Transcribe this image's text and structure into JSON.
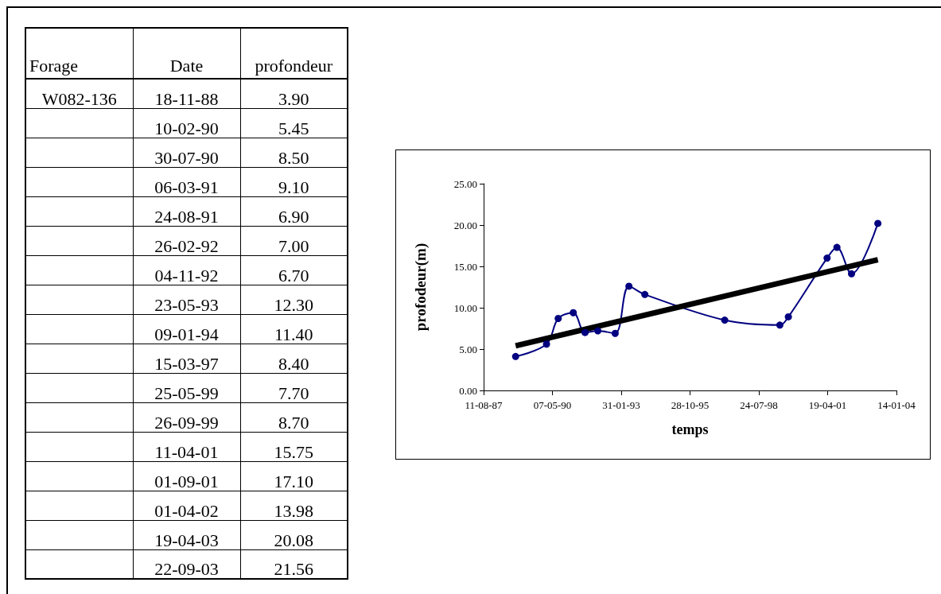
{
  "chart_data": [
    {
      "type": "other",
      "annotations": [
        "Forage",
        "Date",
        "profondeur",
        "W082-136"
      ],
      "categories": [
        "18-11-88",
        "10-02-90",
        "30-07-90",
        "06-03-91",
        "24-08-91",
        "26-02-92",
        "04-11-92",
        "23-05-93",
        "09-01-94",
        "15-03-97",
        "25-05-99",
        "26-09-99",
        "11-04-01",
        "01-09-01",
        "01-04-02",
        "19-04-03",
        "22-09-03"
      ],
      "value_labels": [
        "3.90",
        "5.45",
        "8.50",
        "9.10",
        "6.90",
        "7.00",
        "6.70",
        "12.30",
        "11.40",
        "8.40",
        "7.70",
        "8.70",
        "15.75",
        "17.10",
        "13.98",
        "20.08",
        "21.56"
      ]
    },
    {
      "type": "line",
      "xlabel": "temps",
      "ylabel": "profodeur(m)",
      "marker": "circle",
      "grid": false,
      "xlim": [
        "1987-08-11",
        "2004-01-14"
      ],
      "xticks": [
        {
          "value": "1987-08-11",
          "label": "11-08-87"
        },
        {
          "value": "1990-05-07",
          "label": "07-05-90"
        },
        {
          "value": "1993-01-31",
          "label": "31-01-93"
        },
        {
          "value": "1995-10-28",
          "label": "28-10-95"
        },
        {
          "value": "1998-07-24",
          "label": "24-07-98"
        },
        {
          "value": "2001-04-19",
          "label": "19-04-01"
        },
        {
          "value": "2004-01-14",
          "label": "14-01-04"
        }
      ],
      "ylim": [
        0,
        25
      ],
      "yticks": [
        {
          "value": 0,
          "label": "0.00"
        },
        {
          "value": 5,
          "label": "5.00"
        },
        {
          "value": 10,
          "label": "10.00"
        },
        {
          "value": 15,
          "label": "15.00"
        },
        {
          "value": 20,
          "label": "20.00"
        },
        {
          "value": 25,
          "label": "25.00"
        }
      ],
      "series": [
        {
          "color": "#000080",
          "x": [
            "1988-11-18",
            "1990-02-10",
            "1990-07-30",
            "1991-03-06",
            "1991-08-24",
            "1992-02-26",
            "1992-11-04",
            "1993-05-23",
            "1994-01-09",
            "1997-03-15",
            "1999-05-25",
            "1999-09-26",
            "2001-04-11",
            "2001-09-01",
            "2002-04-01",
            "2003-04-19"
          ],
          "values": [
            4.1,
            5.6,
            8.7,
            9.4,
            7.0,
            7.2,
            6.9,
            12.6,
            11.6,
            8.5,
            7.9,
            8.9,
            16.0,
            17.3,
            14.1,
            20.2
          ]
        },
        {
          "type": "line",
          "color": "#000000",
          "marker": "none",
          "x": [
            "1988-11-18",
            "2003-04-19"
          ],
          "values": [
            5.4,
            15.8
          ]
        }
      ]
    }
  ]
}
